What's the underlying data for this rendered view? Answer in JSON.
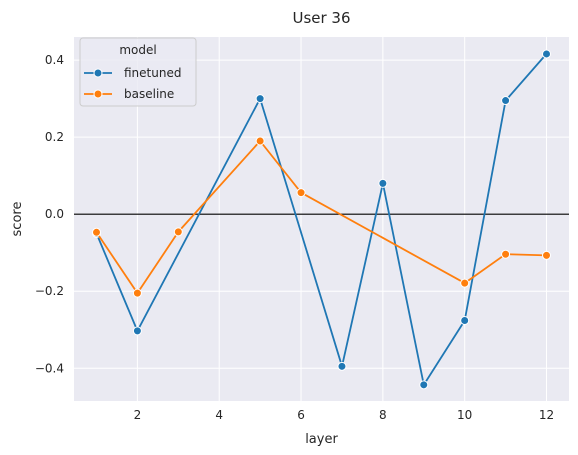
{
  "chart_data": {
    "type": "line",
    "title": "User 36",
    "xlabel": "layer",
    "ylabel": "score",
    "xlim": [
      0.45,
      12.55
    ],
    "ylim": [
      -0.485,
      0.46
    ],
    "xticks": [
      2,
      4,
      6,
      8,
      10,
      12
    ],
    "xtick_labels": [
      "2",
      "4",
      "6",
      "8",
      "10",
      "12"
    ],
    "yticks": [
      -0.4,
      -0.2,
      0.0,
      0.2,
      0.4
    ],
    "ytick_labels": [
      "−0.4",
      "−0.2",
      "0.0",
      "0.2",
      "0.4"
    ],
    "grid": true,
    "reference_line_y": 0.0,
    "legend": {
      "title": "model",
      "placement": "top-left"
    },
    "series": [
      {
        "name": "finetuned",
        "color": "#1f77b4",
        "x": [
          1,
          2,
          5,
          7,
          8,
          9,
          10,
          11,
          12
        ],
        "y": [
          -0.05,
          -0.303,
          0.3,
          -0.395,
          0.08,
          -0.443,
          -0.276,
          0.295,
          0.416
        ]
      },
      {
        "name": "baseline",
        "color": "#ff7f0e",
        "x": [
          1,
          2,
          3,
          5,
          6,
          10,
          11,
          12
        ],
        "y": [
          -0.047,
          -0.205,
          -0.046,
          0.19,
          0.056,
          -0.179,
          -0.104,
          -0.107
        ]
      }
    ]
  }
}
